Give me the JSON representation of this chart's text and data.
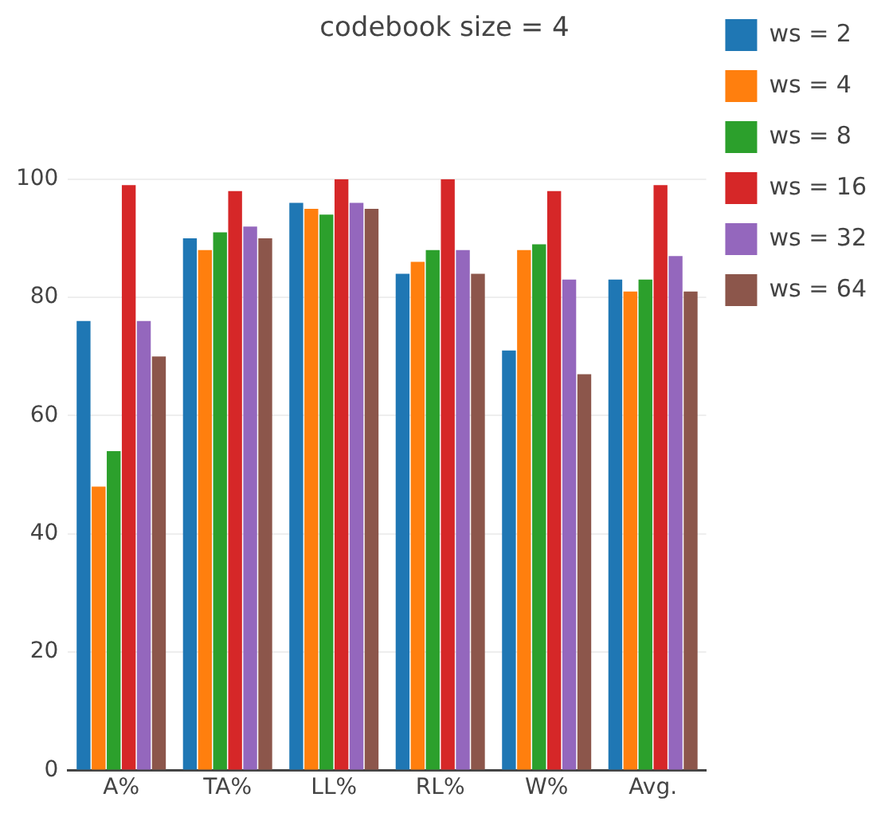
{
  "chart_data": {
    "type": "bar",
    "title": "codebook size = 4",
    "categories": [
      "A%",
      "TA%",
      "LL%",
      "RL%",
      "W%",
      "Avg."
    ],
    "series": [
      {
        "name": "ws = 2",
        "color": "#1f77b4",
        "values": [
          76,
          90,
          96,
          84,
          71,
          83
        ]
      },
      {
        "name": "ws = 4",
        "color": "#ff7f0e",
        "values": [
          48,
          88,
          95,
          86,
          88,
          81
        ]
      },
      {
        "name": "ws = 8",
        "color": "#2ca02c",
        "values": [
          54,
          91,
          94,
          88,
          89,
          83
        ]
      },
      {
        "name": "ws = 16",
        "color": "#d62728",
        "values": [
          99,
          98,
          100,
          100,
          98,
          99
        ]
      },
      {
        "name": "ws = 32",
        "color": "#9467bd",
        "values": [
          76,
          92,
          96,
          88,
          83,
          87
        ]
      },
      {
        "name": "ws = 64",
        "color": "#8c564b",
        "values": [
          70,
          90,
          95,
          84,
          67,
          81
        ]
      }
    ],
    "ylim": [
      0,
      100
    ],
    "yticks": [
      0,
      20,
      40,
      60,
      80,
      100
    ],
    "grid": "y",
    "legend": "top right"
  }
}
